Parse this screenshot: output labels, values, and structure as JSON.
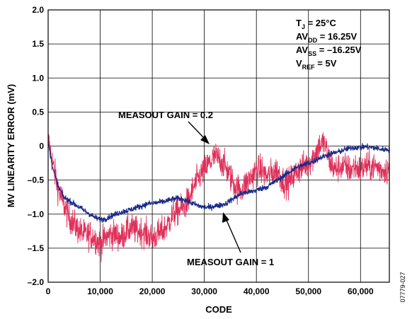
{
  "chart_data": {
    "type": "line",
    "xlabel": "CODE",
    "ylabel": "MV LINEARITY ERROR (mV)",
    "xlim": [
      0,
      65535
    ],
    "ylim": [
      -2.0,
      2.0
    ],
    "x_ticks": [
      0,
      10000,
      20000,
      30000,
      40000,
      50000,
      60000
    ],
    "x_tick_labels": [
      "0",
      "10,000",
      "20,000",
      "30,000",
      "40,000",
      "50,000",
      "60,000"
    ],
    "y_ticks": [
      2.0,
      1.5,
      1.0,
      0.5,
      0,
      -0.5,
      -1.0,
      -1.5,
      -2.0
    ],
    "y_tick_labels": [
      "2.0",
      "1.5",
      "1.0",
      "0.5",
      "0",
      "–0.5",
      "–1.0",
      "–1.5",
      "–2.0"
    ],
    "grid": true,
    "conditions": {
      "tj": {
        "main": "T",
        "sub": "J",
        "rest": " = 25°C"
      },
      "avdd": {
        "main": "AV",
        "sub": "DD",
        "rest": " = 16.25V"
      },
      "avss": {
        "main": "AV",
        "sub": "SS",
        "rest": " = –16.25V"
      },
      "vref": {
        "main": "V",
        "sub": "REF",
        "rest": " = 5V"
      }
    },
    "annotations": {
      "gain02": "MEASOUT GAIN = 0.2",
      "gain1": "MEASOUT GAIN = 1"
    },
    "series": [
      {
        "color": "#e0305a",
        "noise": 0.2,
        "x": [
          0,
          1000,
          2000,
          3000,
          4000,
          5000,
          6000,
          7000,
          8000,
          9000,
          10000,
          11000,
          12000,
          13000,
          14000,
          15000,
          16000,
          17000,
          18000,
          19000,
          20000,
          21000,
          22000,
          23000,
          24000,
          25000,
          26000,
          27000,
          28000,
          29000,
          30000,
          31000,
          32000,
          33000,
          34000,
          35000,
          36000,
          37000,
          38000,
          39000,
          40000,
          41000,
          42000,
          43000,
          44000,
          45000,
          46000,
          47000,
          48000,
          49000,
          50000,
          51000,
          52000,
          53000,
          54000,
          55000,
          56000,
          57000,
          58000,
          59000,
          60000,
          61000,
          62000,
          63000,
          64000,
          65535
        ],
        "y": [
          0.1,
          -0.3,
          -0.65,
          -0.85,
          -1.05,
          -1.15,
          -1.25,
          -1.3,
          -1.3,
          -1.35,
          -1.45,
          -1.35,
          -1.3,
          -1.3,
          -1.35,
          -1.25,
          -1.2,
          -1.25,
          -1.25,
          -1.3,
          -1.35,
          -1.3,
          -1.25,
          -1.15,
          -1.0,
          -0.95,
          -0.9,
          -0.8,
          -0.6,
          -0.45,
          -0.35,
          -0.25,
          -0.15,
          -0.2,
          -0.3,
          -0.45,
          -0.6,
          -0.65,
          -0.55,
          -0.45,
          -0.35,
          -0.35,
          -0.45,
          -0.4,
          -0.35,
          -0.5,
          -0.55,
          -0.45,
          -0.35,
          -0.3,
          -0.25,
          -0.15,
          0.0,
          0.05,
          -0.2,
          -0.35,
          -0.3,
          -0.3,
          -0.35,
          -0.3,
          -0.35,
          -0.3,
          -0.3,
          -0.3,
          -0.35,
          -0.35
        ]
      },
      {
        "color": "#1a2a8a",
        "noise": 0.04,
        "x": [
          0,
          1000,
          2000,
          3000,
          4000,
          5000,
          6000,
          7000,
          8000,
          9000,
          10000,
          11000,
          12000,
          13000,
          14000,
          15000,
          16000,
          17000,
          18000,
          19000,
          20000,
          21000,
          22000,
          23000,
          24000,
          25000,
          26000,
          27000,
          28000,
          29000,
          30000,
          31000,
          32000,
          33000,
          34000,
          35000,
          36000,
          37000,
          38000,
          39000,
          40000,
          41000,
          42000,
          43000,
          44000,
          45000,
          46000,
          47000,
          48000,
          49000,
          50000,
          51000,
          52000,
          53000,
          54000,
          55000,
          56000,
          57000,
          58000,
          59000,
          60000,
          61000,
          62000,
          63000,
          64000,
          65535
        ],
        "y": [
          0.05,
          -0.35,
          -0.6,
          -0.75,
          -0.8,
          -0.85,
          -0.9,
          -0.95,
          -1.0,
          -1.05,
          -1.08,
          -1.07,
          -1.03,
          -1.0,
          -0.97,
          -0.95,
          -0.93,
          -0.9,
          -0.88,
          -0.85,
          -0.84,
          -0.83,
          -0.82,
          -0.8,
          -0.78,
          -0.77,
          -0.78,
          -0.82,
          -0.85,
          -0.88,
          -0.9,
          -0.9,
          -0.88,
          -0.87,
          -0.85,
          -0.8,
          -0.75,
          -0.7,
          -0.68,
          -0.67,
          -0.65,
          -0.62,
          -0.6,
          -0.55,
          -0.5,
          -0.45,
          -0.4,
          -0.35,
          -0.3,
          -0.28,
          -0.25,
          -0.22,
          -0.18,
          -0.15,
          -0.12,
          -0.1,
          -0.08,
          -0.05,
          -0.03,
          -0.02,
          -0.02,
          -0.01,
          -0.02,
          -0.03,
          -0.05,
          -0.05
        ]
      }
    ]
  },
  "figure_id": "07779-027"
}
